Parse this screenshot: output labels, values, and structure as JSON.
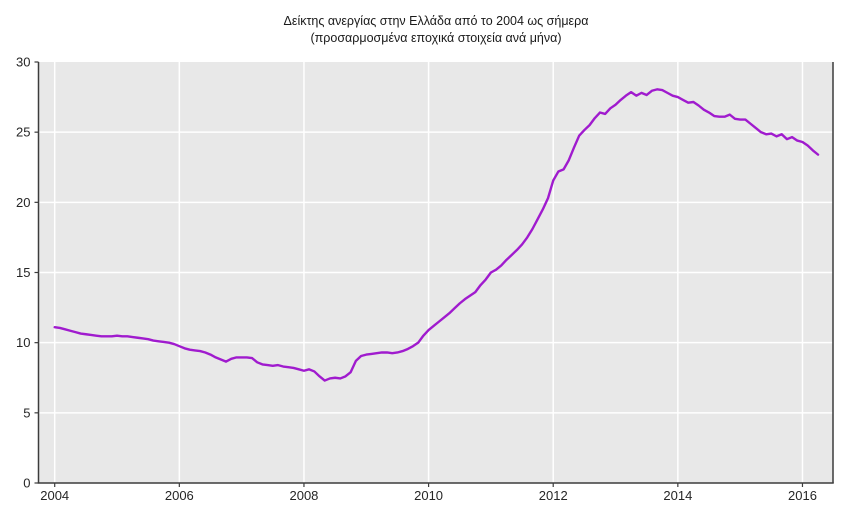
{
  "colors": {
    "line": "#a01bce",
    "plot_background": "#e8e8e8",
    "gridline": "#ffffff",
    "axis": "#3c3c3c",
    "text": "#262626"
  },
  "chart_data": {
    "type": "line",
    "title": "Δείκτης ανεργίας στην Ελλάδα από το 2004 ως σήμερα",
    "subtitle": "(προσαρμοσμένα εποχικά στοιχεία ανά μήνα)",
    "ylabel": "",
    "xlabel": "",
    "grid": true,
    "legend_position": "none",
    "ylim": [
      0,
      30
    ],
    "xlim_years": [
      2003.74,
      2016.49
    ],
    "y_ticks": [
      0,
      5,
      10,
      15,
      20,
      25,
      30
    ],
    "x_tick_years": [
      2004,
      2006,
      2008,
      2010,
      2012,
      2014,
      2016
    ],
    "x_tick_labels": [
      "2004",
      "2006",
      "2008",
      "2010",
      "2012",
      "2014",
      "2016"
    ],
    "x_start": {
      "year": 2004,
      "month": 1
    },
    "x_end": {
      "year": 2016,
      "month": 4
    },
    "frequency": "monthly",
    "series": [
      {
        "name": "unemployment-rate-percent",
        "values": [
          11.1,
          11.05,
          10.95,
          10.85,
          10.75,
          10.65,
          10.6,
          10.55,
          10.5,
          10.45,
          10.45,
          10.45,
          10.5,
          10.45,
          10.45,
          10.4,
          10.35,
          10.3,
          10.25,
          10.15,
          10.1,
          10.05,
          10.0,
          9.9,
          9.75,
          9.6,
          9.5,
          9.45,
          9.4,
          9.3,
          9.15,
          8.95,
          8.8,
          8.65,
          8.85,
          8.95,
          8.95,
          8.95,
          8.9,
          8.6,
          8.45,
          8.4,
          8.35,
          8.4,
          8.3,
          8.25,
          8.2,
          8.1,
          8.0,
          8.1,
          7.95,
          7.6,
          7.3,
          7.45,
          7.5,
          7.45,
          7.6,
          7.9,
          8.7,
          9.05,
          9.15,
          9.2,
          9.25,
          9.3,
          9.3,
          9.25,
          9.3,
          9.4,
          9.55,
          9.75,
          10.0,
          10.5,
          10.9,
          11.2,
          11.5,
          11.8,
          12.1,
          12.45,
          12.8,
          13.1,
          13.35,
          13.6,
          14.1,
          14.5,
          15.0,
          15.2,
          15.5,
          15.9,
          16.25,
          16.6,
          17.0,
          17.5,
          18.1,
          18.8,
          19.5,
          20.3,
          21.55,
          22.2,
          22.35,
          23.0,
          23.9,
          24.75,
          25.15,
          25.5,
          26.0,
          26.4,
          26.3,
          26.7,
          26.95,
          27.3,
          27.6,
          27.85,
          27.6,
          27.8,
          27.65,
          27.95,
          28.05,
          28.0,
          27.8,
          27.6,
          27.5,
          27.3,
          27.1,
          27.15,
          26.9,
          26.6,
          26.4,
          26.15,
          26.1,
          26.1,
          26.25,
          25.95,
          25.9,
          25.9,
          25.6,
          25.3,
          25.0,
          24.85,
          24.9,
          24.7,
          24.85,
          24.5,
          24.65,
          24.4,
          24.3,
          24.05,
          23.7,
          23.4
        ]
      }
    ]
  }
}
